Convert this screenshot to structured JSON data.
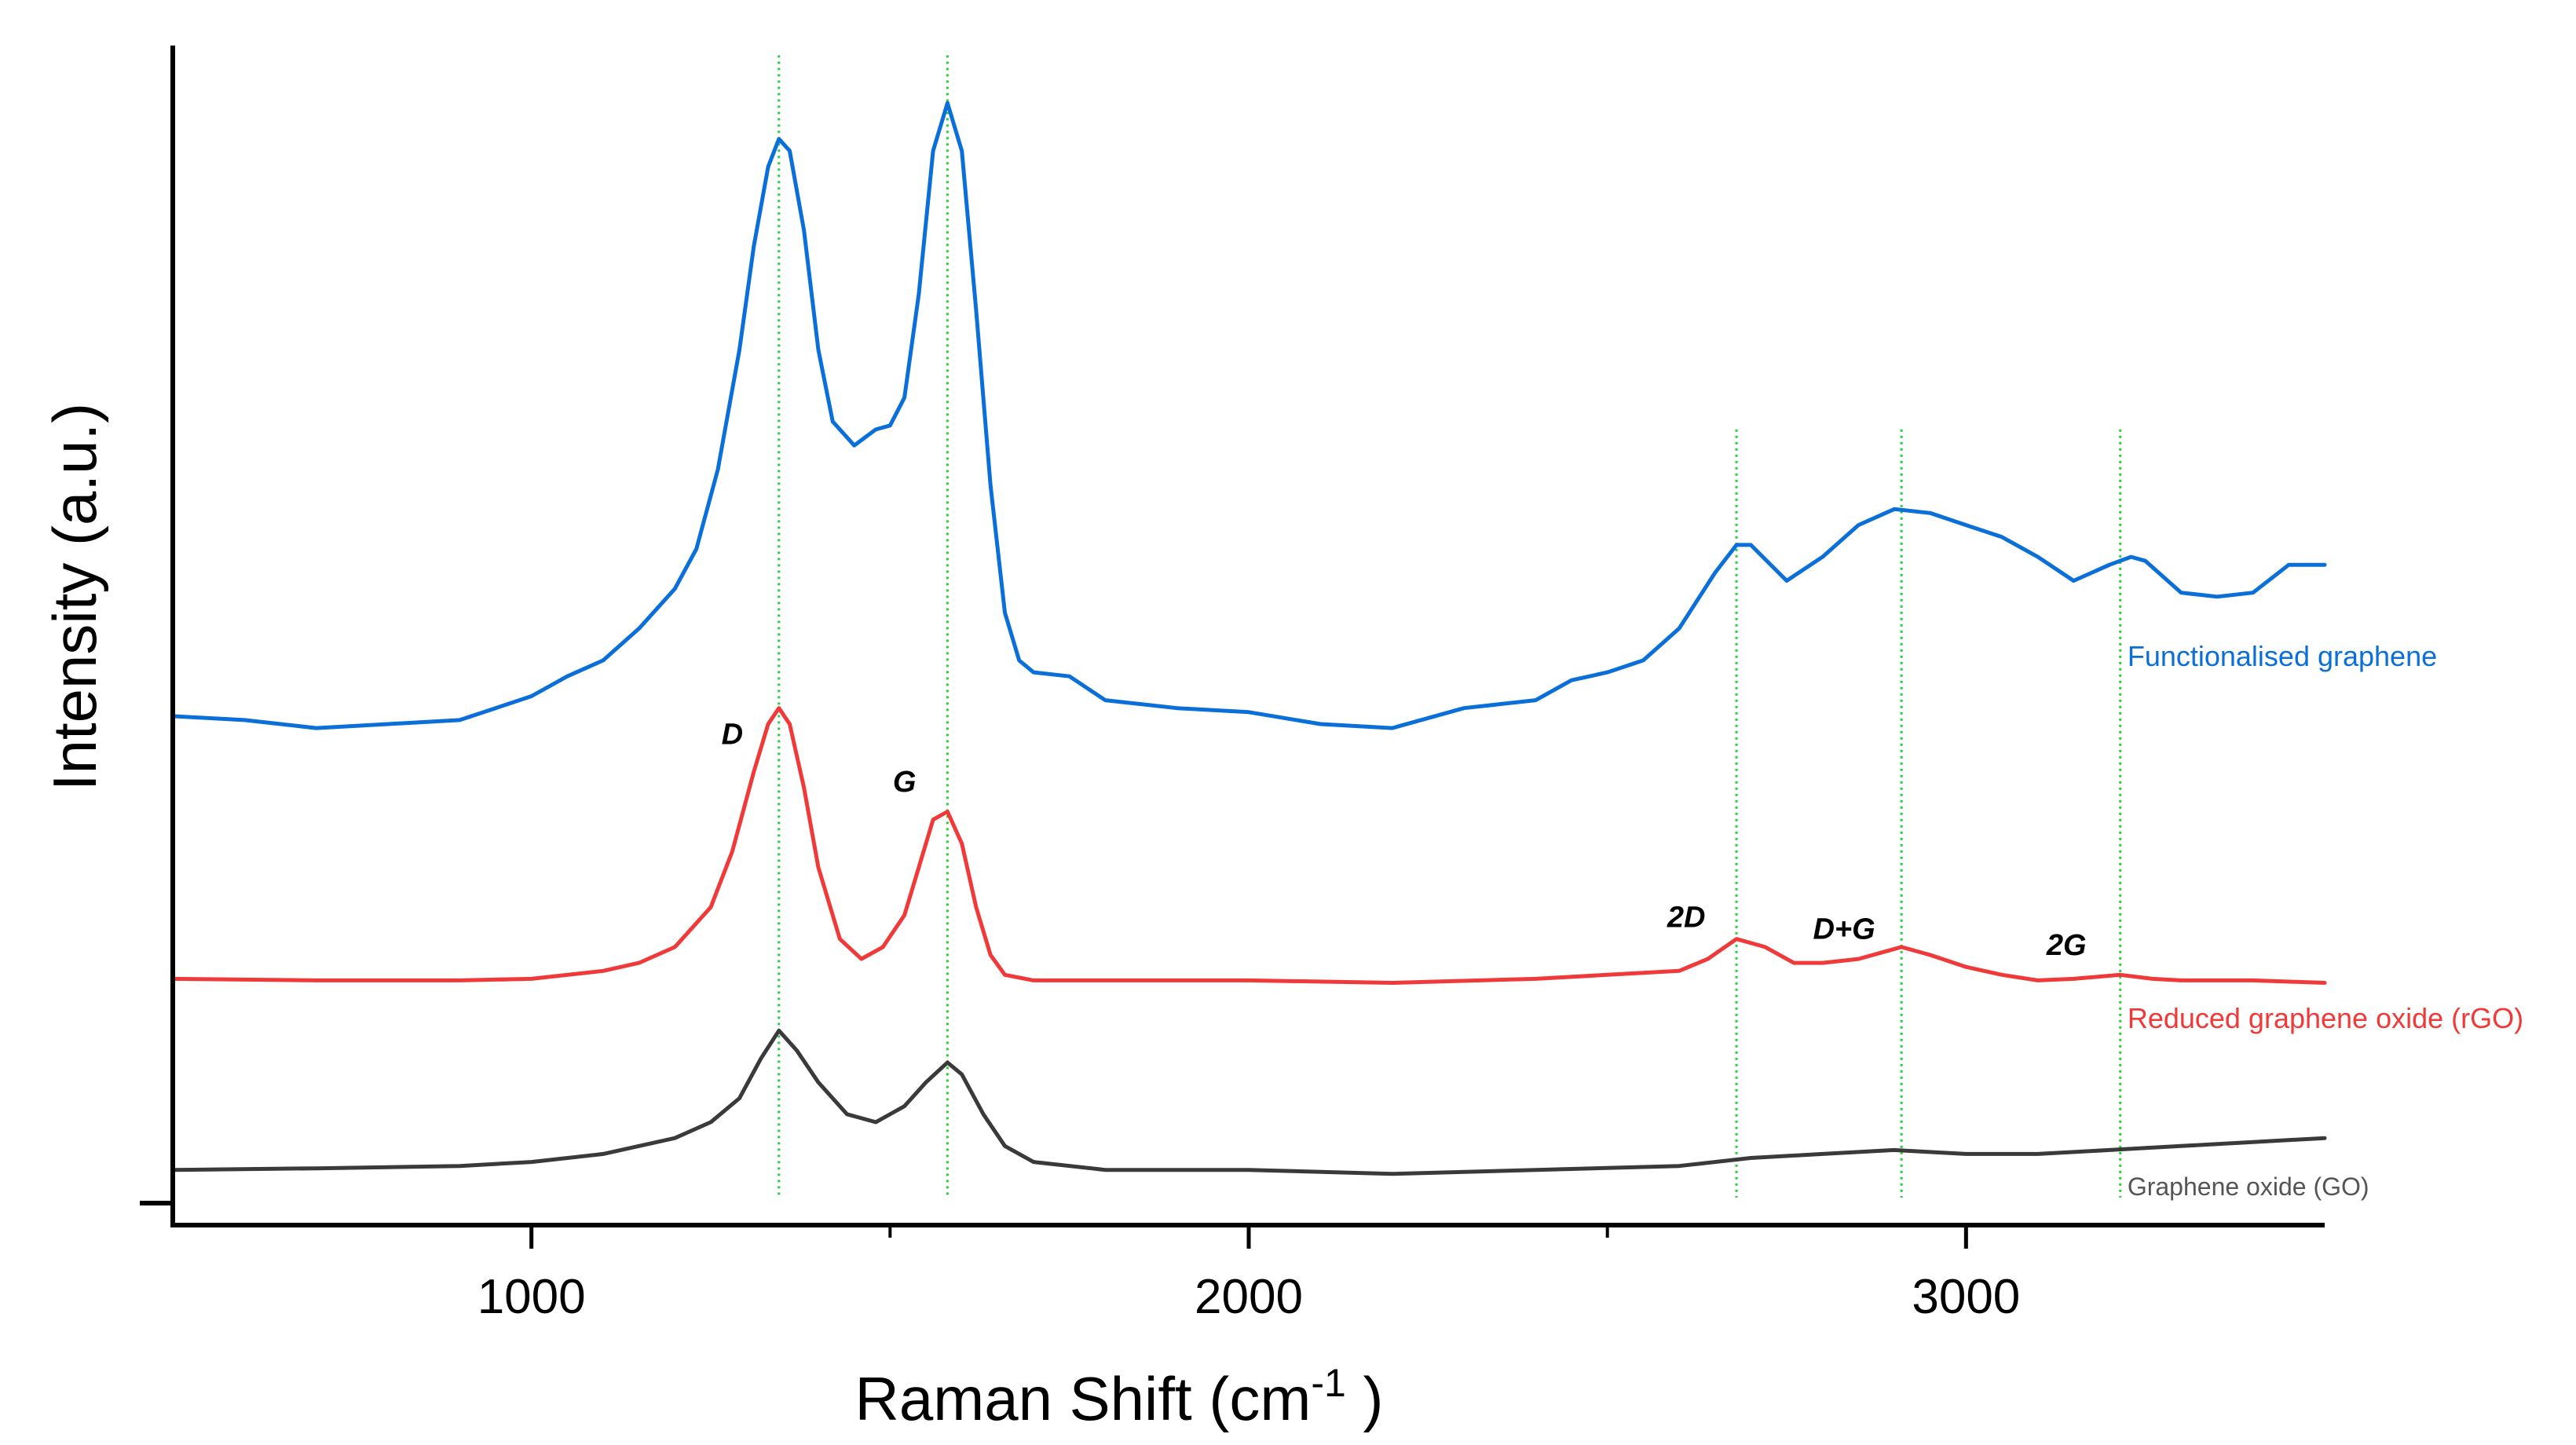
{
  "chart_data": {
    "type": "line",
    "title": "",
    "xlabel": "Raman Shift (cm",
    "xlabel_sup": "-1",
    "xlabel_close": " )",
    "ylabel": "Intensity (a.u.)",
    "xlim": [
      500,
      3500
    ],
    "ylim": [
      0,
      1.45
    ],
    "xticks": [
      1000,
      2000,
      3000
    ],
    "xtick_labels": [
      "1000",
      "2000",
      "3000"
    ],
    "minor_xticks": [
      1500,
      2500
    ],
    "y_ticks_shown": false,
    "grid": false,
    "reference_lines": {
      "color": "#2ecc40",
      "style": "dotted",
      "x": [
        1345,
        1580,
        2680,
        2910,
        3215
      ],
      "y_top": [
        1.42,
        1.42,
        0.95,
        0.95,
        0.95
      ]
    },
    "peak_labels": [
      {
        "text": "D",
        "x": 1280,
        "y": 0.555
      },
      {
        "text": "G",
        "x": 1520,
        "y": 0.495
      },
      {
        "text": "2D",
        "x": 2610,
        "y": 0.325
      },
      {
        "text": "D+G",
        "x": 2830,
        "y": 0.31
      },
      {
        "text": "2G",
        "x": 3140,
        "y": 0.29
      }
    ],
    "series": [
      {
        "name": "Functionalised graphene",
        "color": "#0a6fd8",
        "label_pos": {
          "x": 3225,
          "y": 0.665
        },
        "x": [
          500,
          600,
          700,
          800,
          900,
          950,
          1000,
          1050,
          1100,
          1150,
          1200,
          1230,
          1260,
          1290,
          1310,
          1330,
          1345,
          1360,
          1380,
          1400,
          1420,
          1450,
          1480,
          1500,
          1520,
          1540,
          1560,
          1580,
          1600,
          1620,
          1640,
          1660,
          1680,
          1700,
          1750,
          1800,
          1900,
          2000,
          2100,
          2200,
          2300,
          2400,
          2450,
          2500,
          2550,
          2600,
          2650,
          2680,
          2700,
          2750,
          2800,
          2850,
          2900,
          2950,
          3000,
          3050,
          3100,
          3150,
          3200,
          3230,
          3250,
          3300,
          3350,
          3400,
          3450,
          3500
        ],
        "y": [
          0.59,
          0.585,
          0.575,
          0.58,
          0.585,
          0.6,
          0.615,
          0.64,
          0.66,
          0.7,
          0.75,
          0.8,
          0.9,
          1.05,
          1.18,
          1.28,
          1.315,
          1.3,
          1.2,
          1.05,
          0.96,
          0.93,
          0.95,
          0.955,
          0.99,
          1.12,
          1.3,
          1.36,
          1.3,
          1.1,
          0.88,
          0.72,
          0.66,
          0.645,
          0.64,
          0.61,
          0.6,
          0.595,
          0.58,
          0.575,
          0.6,
          0.61,
          0.635,
          0.645,
          0.66,
          0.7,
          0.77,
          0.805,
          0.805,
          0.76,
          0.79,
          0.83,
          0.85,
          0.845,
          0.83,
          0.815,
          0.79,
          0.76,
          0.78,
          0.79,
          0.785,
          0.745,
          0.74,
          0.745,
          0.78,
          0.78
        ]
      },
      {
        "name": "Reduced graphene oxide (rGO)",
        "color": "#f03a3a",
        "label_pos": {
          "x": 3225,
          "y": 0.21
        },
        "x": [
          500,
          700,
          900,
          1000,
          1100,
          1150,
          1200,
          1250,
          1280,
          1310,
          1330,
          1345,
          1360,
          1380,
          1400,
          1430,
          1460,
          1490,
          1520,
          1540,
          1560,
          1580,
          1600,
          1620,
          1640,
          1660,
          1700,
          1800,
          2000,
          2200,
          2400,
          2500,
          2600,
          2640,
          2680,
          2720,
          2760,
          2800,
          2850,
          2910,
          2950,
          3000,
          3050,
          3100,
          3150,
          3215,
          3260,
          3300,
          3400,
          3500
        ],
        "y": [
          0.26,
          0.258,
          0.258,
          0.26,
          0.27,
          0.28,
          0.3,
          0.35,
          0.42,
          0.52,
          0.58,
          0.6,
          0.58,
          0.5,
          0.4,
          0.31,
          0.285,
          0.3,
          0.34,
          0.4,
          0.46,
          0.47,
          0.43,
          0.35,
          0.29,
          0.265,
          0.258,
          0.258,
          0.258,
          0.255,
          0.26,
          0.265,
          0.27,
          0.285,
          0.31,
          0.3,
          0.28,
          0.28,
          0.285,
          0.3,
          0.29,
          0.275,
          0.265,
          0.258,
          0.26,
          0.265,
          0.26,
          0.258,
          0.258,
          0.255
        ]
      },
      {
        "name": "Graphene oxide (GO)",
        "color": "#3a3a3a",
        "label_pos": {
          "x": 3225,
          "y": 0.0
        },
        "x": [
          500,
          700,
          900,
          1000,
          1100,
          1200,
          1250,
          1290,
          1320,
          1345,
          1370,
          1400,
          1440,
          1480,
          1520,
          1550,
          1580,
          1600,
          1630,
          1660,
          1700,
          1800,
          2000,
          2200,
          2400,
          2600,
          2700,
          2800,
          2900,
          3000,
          3100,
          3200,
          3300,
          3400,
          3500
        ],
        "y": [
          0.02,
          0.022,
          0.025,
          0.03,
          0.04,
          0.06,
          0.08,
          0.11,
          0.16,
          0.195,
          0.17,
          0.13,
          0.09,
          0.08,
          0.1,
          0.13,
          0.155,
          0.14,
          0.09,
          0.05,
          0.03,
          0.02,
          0.02,
          0.015,
          0.02,
          0.025,
          0.035,
          0.04,
          0.045,
          0.04,
          0.04,
          0.045,
          0.05,
          0.055,
          0.06
        ]
      }
    ]
  }
}
